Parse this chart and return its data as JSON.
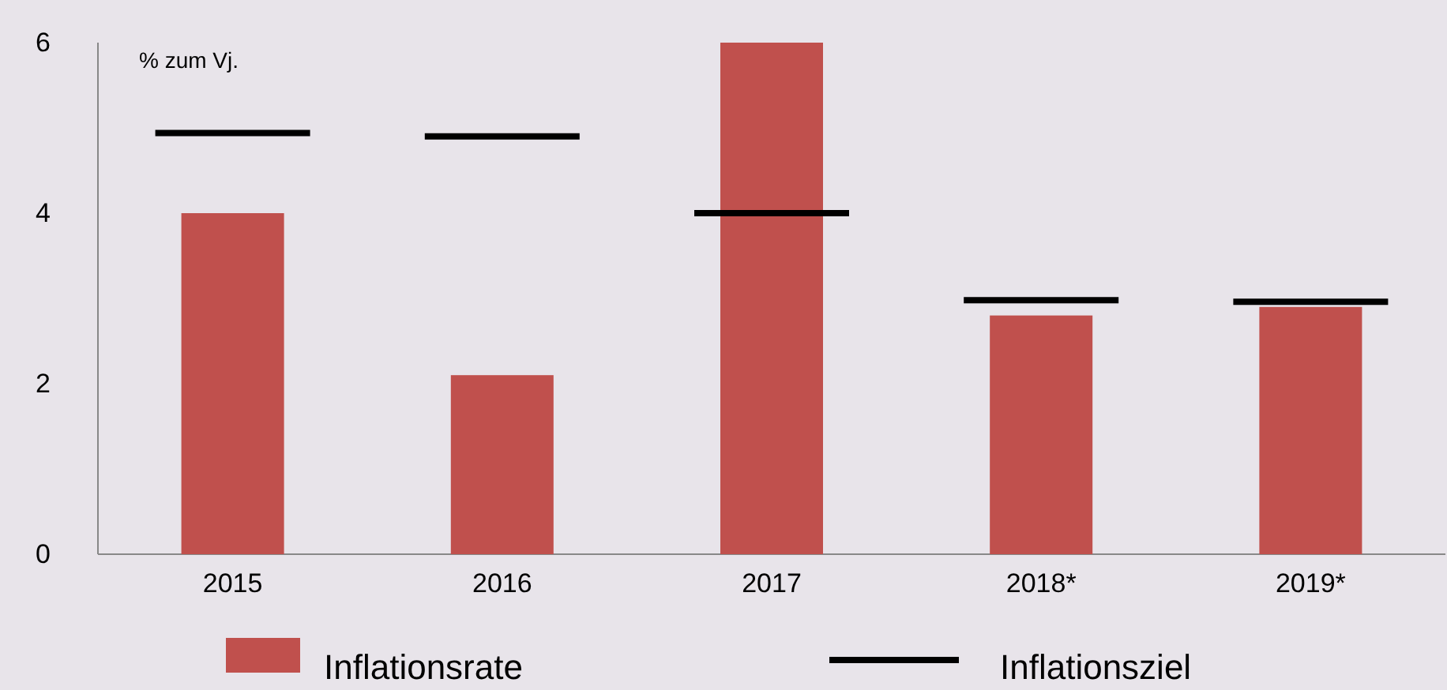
{
  "chart_data": {
    "type": "bar",
    "categories": [
      "2015",
      "2016",
      "2017",
      "2018*",
      "2019*"
    ],
    "series": [
      {
        "name": "Inflationsrate",
        "type": "bar",
        "color": "#c0504d",
        "values": [
          4.0,
          2.1,
          6.0,
          2.8,
          2.9
        ]
      }
    ],
    "ref_lines": [
      {
        "axis": "y",
        "value": 4.94,
        "label": "Inflationsziel",
        "color": "#000000",
        "line_style": "solid"
      },
      {
        "axis": "y",
        "value": 4.9,
        "color": "#000000",
        "line_style": "solid"
      },
      {
        "axis": "y",
        "value": 4.0,
        "color": "#000000",
        "line_style": "solid"
      },
      {
        "axis": "y",
        "value": 2.98,
        "color": "#000000",
        "line_style": "solid"
      },
      {
        "axis": "y",
        "value": 2.96,
        "color": "#000000",
        "line_style": "solid"
      }
    ],
    "ylim": [
      0,
      6
    ],
    "yticks": [
      0,
      2,
      4,
      6
    ],
    "grid": false,
    "legend": "bottom",
    "annotations": [
      "% zum Vj."
    ]
  }
}
